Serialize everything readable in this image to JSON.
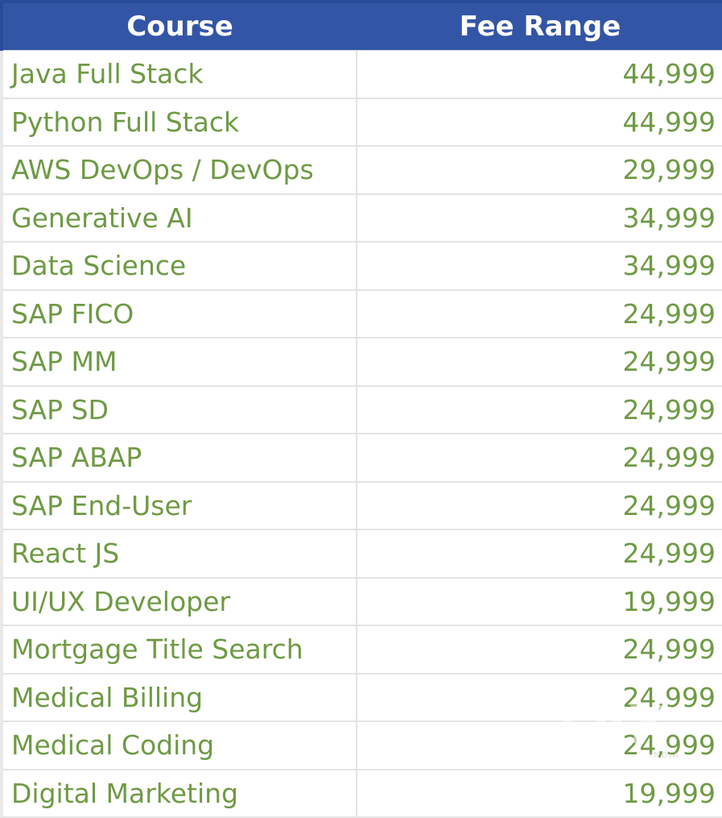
{
  "table": {
    "headers": {
      "course": "Course",
      "fee": "Fee Range"
    },
    "rows": [
      {
        "course": "Java Full Stack",
        "fee": "44,999"
      },
      {
        "course": "Python Full Stack",
        "fee": "44,999"
      },
      {
        "course": "AWS DevOps / DevOps",
        "fee": "29,999"
      },
      {
        "course": "Generative AI",
        "fee": "34,999"
      },
      {
        "course": "Data Science",
        "fee": "34,999"
      },
      {
        "course": "SAP FICO",
        "fee": "24,999"
      },
      {
        "course": "SAP MM",
        "fee": "24,999"
      },
      {
        "course": "SAP SD",
        "fee": "24,999"
      },
      {
        "course": "SAP ABAP",
        "fee": "24,999"
      },
      {
        "course": "SAP End-User",
        "fee": "24,999"
      },
      {
        "course": "React JS",
        "fee": "24,999"
      },
      {
        "course": "UI/UX Developer",
        "fee": "19,999"
      },
      {
        "course": "Mortgage Title Search",
        "fee": "24,999"
      },
      {
        "course": "Medical Billing",
        "fee": "24,999"
      },
      {
        "course": "Medical Coding",
        "fee": "24,999"
      },
      {
        "course": "Digital Marketing",
        "fee": "19,999"
      }
    ]
  },
  "watermark": {
    "brand": "olx",
    "x_letter": "X",
    "region": "INDIA"
  },
  "colors": {
    "header_bg": "#3355a5",
    "header_text": "#ffffff",
    "cell_text": "#6e9a44",
    "grid": "#e3e3e3"
  }
}
